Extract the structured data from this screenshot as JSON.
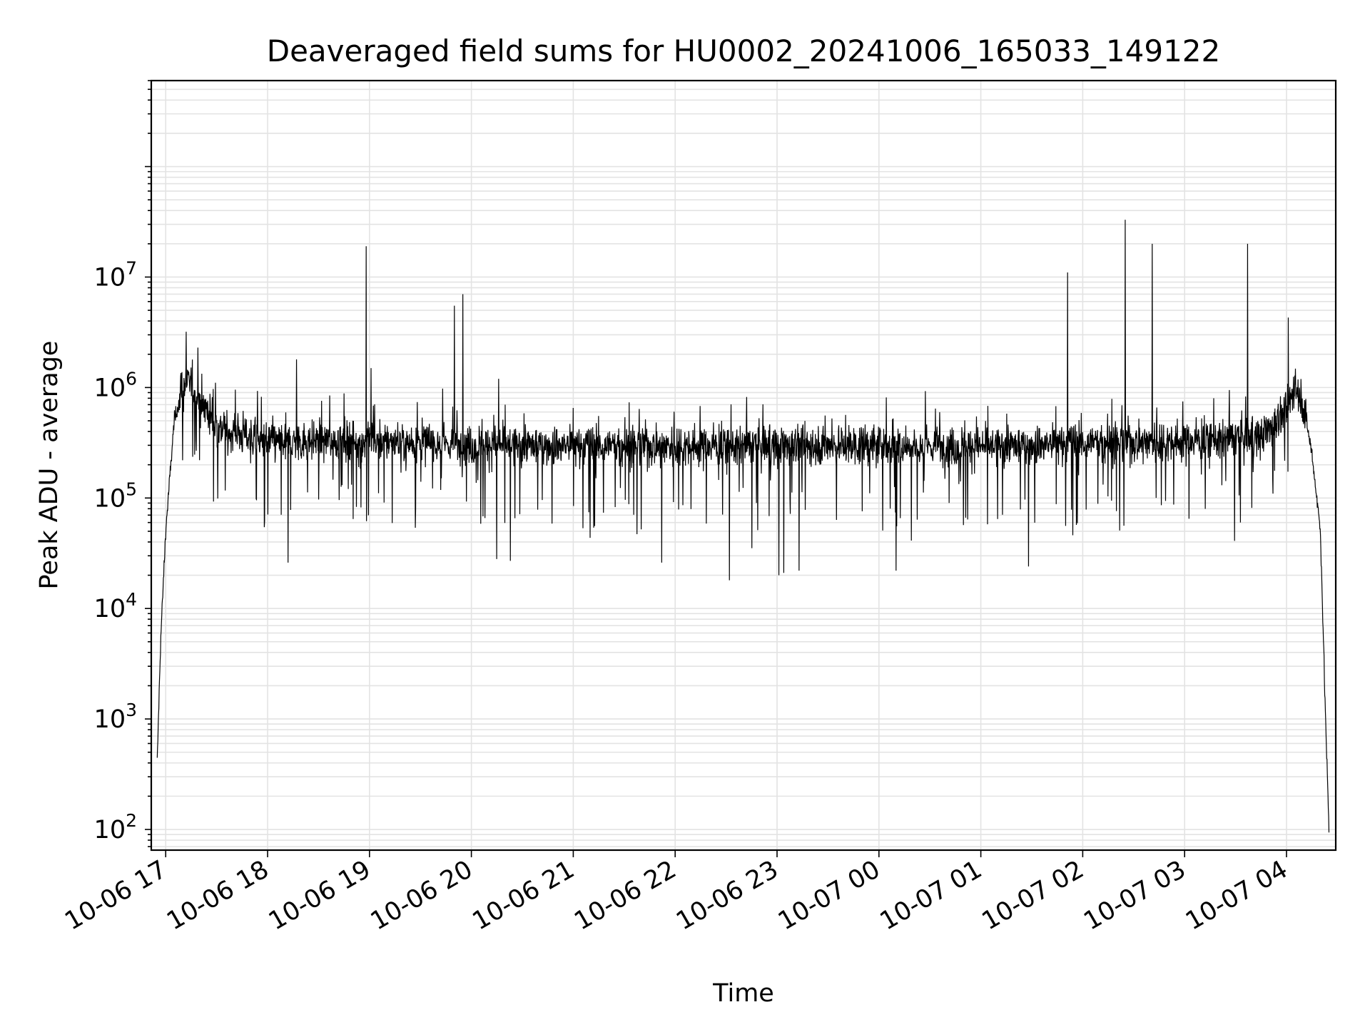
{
  "chart_data": {
    "type": "line",
    "title": "Deaveraged field sums for HU0002_20241006_165033_149122",
    "xlabel": "Time",
    "ylabel": "Peak ADU - average",
    "yscale": "log",
    "ylim": [
      65,
      600000000
    ],
    "xlim": [
      "2024-10-06T16:51:30",
      "2024-10-07T04:29:00"
    ],
    "x_tick_labels": [
      "10-06 17",
      "10-06 18",
      "10-06 19",
      "10-06 20",
      "10-06 21",
      "10-06 22",
      "10-06 23",
      "10-07 00",
      "10-07 01",
      "10-07 02",
      "10-07 03",
      "10-07 04"
    ],
    "x_ticks": [
      "2024-10-06T17:00",
      "2024-10-06T18:00",
      "2024-10-06T19:00",
      "2024-10-06T20:00",
      "2024-10-06T21:00",
      "2024-10-06T22:00",
      "2024-10-06T23:00",
      "2024-10-07T00:00",
      "2024-10-07T01:00",
      "2024-10-07T02:00",
      "2024-10-07T03:00",
      "2024-10-07T04:00"
    ],
    "y_ticks": [
      {
        "value": 100,
        "base": "10",
        "exp": "2"
      },
      {
        "value": 1000,
        "base": "10",
        "exp": "3"
      },
      {
        "value": 10000,
        "base": "10",
        "exp": "4"
      },
      {
        "value": 100000,
        "base": "10",
        "exp": "5"
      },
      {
        "value": 1000000,
        "base": "10",
        "exp": "6"
      },
      {
        "value": 10000000,
        "base": "10",
        "exp": "7"
      }
    ],
    "grid": true,
    "line_color": "#000000",
    "x_samples": [
      "2024-10-06T16:55",
      "2024-10-06T16:57",
      "2024-10-06T17:00",
      "2024-10-06T17:05",
      "2024-10-06T17:10",
      "2024-10-06T17:15",
      "2024-10-06T17:20",
      "2024-10-06T17:30",
      "2024-10-06T17:45",
      "2024-10-06T18:00",
      "2024-10-06T18:30",
      "2024-10-06T19:00",
      "2024-10-06T19:30",
      "2024-10-06T20:00",
      "2024-10-06T21:00",
      "2024-10-06T22:00",
      "2024-10-06T23:00",
      "2024-10-07T00:00",
      "2024-10-07T01:00",
      "2024-10-07T02:00",
      "2024-10-07T03:00",
      "2024-10-07T03:45",
      "2024-10-07T04:00",
      "2024-10-07T04:05",
      "2024-10-07T04:10",
      "2024-10-07T04:15",
      "2024-10-07T04:20",
      "2024-10-07T04:23",
      "2024-10-07T04:25"
    ],
    "y_baseline": [
      400,
      5000,
      50000,
      500000,
      1000000,
      1100000,
      800000,
      450000,
      380000,
      320000,
      330000,
      330000,
      320000,
      300000,
      300000,
      300000,
      300000,
      300000,
      290000,
      320000,
      330000,
      360000,
      600000,
      1100000,
      700000,
      250000,
      50000,
      1000,
      100
    ],
    "spikes": [
      {
        "x": "2024-10-06T17:12",
        "y": 3200000
      },
      {
        "x": "2024-10-06T17:19",
        "y": 2300000
      },
      {
        "x": "2024-10-06T18:17",
        "y": 1800000
      },
      {
        "x": "2024-10-06T18:58",
        "y": 19000000
      },
      {
        "x": "2024-10-06T19:01",
        "y": 1500000
      },
      {
        "x": "2024-10-06T19:50",
        "y": 5500000
      },
      {
        "x": "2024-10-06T19:55",
        "y": 7000000
      },
      {
        "x": "2024-10-06T20:16",
        "y": 1200000
      },
      {
        "x": "2024-10-07T01:51",
        "y": 11000000
      },
      {
        "x": "2024-10-07T02:25",
        "y": 33000000
      },
      {
        "x": "2024-10-07T02:41",
        "y": 20000000
      },
      {
        "x": "2024-10-07T03:37",
        "y": 20000000
      },
      {
        "x": "2024-10-07T04:01",
        "y": 4300000
      }
    ],
    "dips": [
      {
        "x": "2024-10-06T18:12",
        "y": 26000
      },
      {
        "x": "2024-10-06T20:15",
        "y": 28000
      },
      {
        "x": "2024-10-06T20:23",
        "y": 27000
      },
      {
        "x": "2024-10-06T21:52",
        "y": 26000
      },
      {
        "x": "2024-10-06T22:32",
        "y": 18000
      },
      {
        "x": "2024-10-06T23:01",
        "y": 20000
      },
      {
        "x": "2024-10-06T23:04",
        "y": 21000
      },
      {
        "x": "2024-10-06T23:13",
        "y": 22000
      },
      {
        "x": "2024-10-07T00:10",
        "y": 22000
      },
      {
        "x": "2024-10-07T01:28",
        "y": 24000
      }
    ]
  }
}
